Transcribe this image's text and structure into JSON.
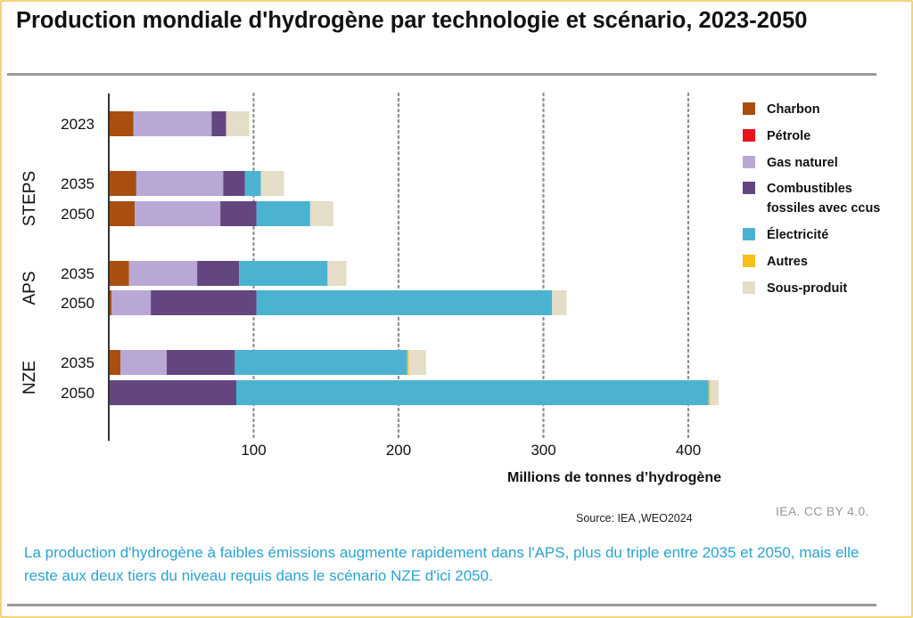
{
  "title": "Production mondiale d'hydrogène par technologie et scénario, 2023-2050",
  "source": "Source: IEA ,WEO2024",
  "credit": "IEA. CC BY 4.0.",
  "caption": "La production d'hydrogène à faibles émissions augmente rapidement dans l'APS, plus du triple entre 2035 et 2050, mais elle reste aux deux tiers du niveau requis dans le scénario NZE d'ici 2050.",
  "chart_data": {
    "type": "bar",
    "orientation": "horizontal",
    "stacked": true,
    "title": "Production mondiale d'hydrogène par technologie et scénario, 2023-2050",
    "xlabel": "Millions de tonnes d’hydrogène",
    "ylabel": "",
    "xlim": [
      0,
      420
    ],
    "xticks": [
      100,
      200,
      300,
      400
    ],
    "grid": "vertical dotted",
    "legend_position": "right",
    "groups": [
      {
        "name": "",
        "rows": [
          0
        ]
      },
      {
        "name": "STEPS",
        "rows": [
          1,
          2
        ]
      },
      {
        "name": "APS",
        "rows": [
          3,
          4
        ]
      },
      {
        "name": "NZE",
        "rows": [
          5,
          6
        ]
      }
    ],
    "categories": [
      "2023",
      "2035",
      "2050",
      "2035",
      "2050",
      "2035",
      "2050"
    ],
    "series": [
      {
        "name": "Charbon",
        "color": "#a84e10",
        "values": [
          17,
          19,
          18,
          14,
          2,
          8,
          0
        ]
      },
      {
        "name": "Pétrole",
        "color": "#e8141b",
        "values": [
          0,
          0,
          0,
          0,
          0,
          0,
          0
        ]
      },
      {
        "name": "Gas naturel",
        "color": "#b9a8d6",
        "values": [
          54,
          60,
          59,
          47,
          27,
          32,
          0
        ]
      },
      {
        "name": "Combustibles fossiles avec ccus",
        "color": "#63467f",
        "values": [
          10,
          15,
          25,
          29,
          73,
          47,
          88
        ]
      },
      {
        "name": "Électricité",
        "color": "#4bb3cf",
        "values": [
          0,
          11,
          37,
          61,
          204,
          119,
          326
        ]
      },
      {
        "name": "Autres",
        "color": "#f6bf1a",
        "values": [
          0,
          0,
          0,
          0,
          0,
          1,
          1
        ]
      },
      {
        "name": "Sous-produit",
        "color": "#e4ddc7",
        "values": [
          16,
          16,
          16,
          13,
          10,
          12,
          6
        ]
      }
    ]
  }
}
